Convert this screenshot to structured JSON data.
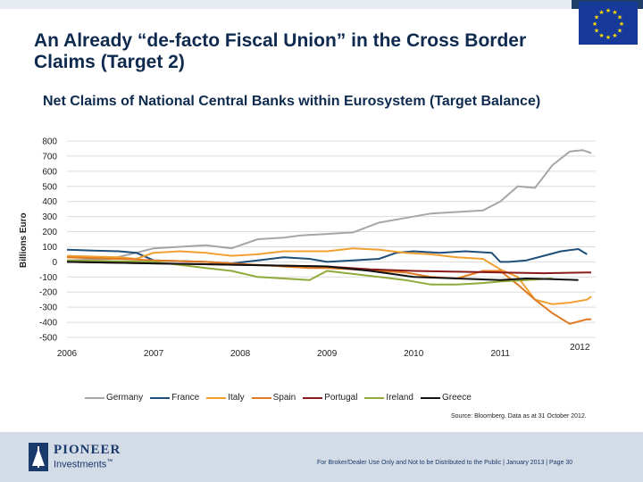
{
  "header": {
    "title": "An Already “de-facto Fiscal Union” in the Cross Border Claims (Target 2)",
    "subtitle": "Net Claims of National Central Banks within Eurosystem (Target Balance)"
  },
  "chart_data": {
    "type": "line",
    "title": "Net Claims of National Central Banks within Eurosystem (Target Balance)",
    "xlabel": "",
    "ylabel": "Billions Euro",
    "ylim": [
      -500,
      800
    ],
    "yticks": [
      800,
      700,
      600,
      500,
      400,
      300,
      200,
      100,
      0,
      -100,
      -200,
      -300,
      -400,
      -500
    ],
    "xticks": [
      "2006",
      "2007",
      "2008",
      "2009",
      "2010",
      "2011",
      "2012"
    ],
    "xlim": [
      2006.0,
      2012.1
    ],
    "grid": true,
    "legend_position": "bottom",
    "series": [
      {
        "name": "Germany",
        "color": "#a6a6a6",
        "x": [
          2006.0,
          2006.5,
          2006.8,
          2007.0,
          2007.3,
          2007.6,
          2007.9,
          2008.2,
          2008.5,
          2008.7,
          2009.0,
          2009.3,
          2009.6,
          2009.9,
          2010.2,
          2010.5,
          2010.8,
          2011.0,
          2011.2,
          2011.4,
          2011.6,
          2011.8,
          2011.95,
          2012.05
        ],
        "y": [
          10,
          20,
          60,
          90,
          100,
          110,
          90,
          150,
          160,
          175,
          185,
          195,
          260,
          290,
          320,
          330,
          340,
          400,
          500,
          490,
          640,
          730,
          740,
          720
        ]
      },
      {
        "name": "France",
        "color": "#1f4e79",
        "x": [
          2006.0,
          2006.3,
          2006.6,
          2006.8,
          2007.0,
          2007.3,
          2007.6,
          2007.9,
          2008.2,
          2008.5,
          2008.8,
          2009.0,
          2009.3,
          2009.6,
          2009.8,
          2010.0,
          2010.3,
          2010.6,
          2010.9,
          2011.0,
          2011.1,
          2011.3,
          2011.5,
          2011.7,
          2011.9,
          2012.0
        ],
        "y": [
          80,
          75,
          70,
          60,
          10,
          5,
          0,
          -10,
          10,
          30,
          20,
          0,
          10,
          20,
          60,
          70,
          60,
          70,
          60,
          0,
          0,
          10,
          40,
          70,
          85,
          50
        ]
      },
      {
        "name": "Italy",
        "color": "#f0a030",
        "x": [
          2006.0,
          2006.3,
          2006.6,
          2006.8,
          2007.0,
          2007.3,
          2007.6,
          2007.9,
          2008.2,
          2008.5,
          2008.8,
          2009.0,
          2009.3,
          2009.6,
          2009.9,
          2010.2,
          2010.5,
          2010.8,
          2011.0,
          2011.2,
          2011.4,
          2011.6,
          2011.8,
          2012.0,
          2012.05
        ],
        "y": [
          40,
          35,
          30,
          20,
          60,
          70,
          60,
          40,
          50,
          70,
          70,
          70,
          90,
          80,
          60,
          50,
          30,
          20,
          -50,
          -100,
          -250,
          -280,
          -270,
          -250,
          -230
        ]
      },
      {
        "name": "Spain",
        "color": "#e07a20",
        "x": [
          2006.0,
          2006.3,
          2006.6,
          2006.8,
          2007.0,
          2007.3,
          2007.6,
          2007.9,
          2008.2,
          2008.5,
          2008.8,
          2009.0,
          2009.3,
          2009.6,
          2009.9,
          2010.2,
          2010.5,
          2010.8,
          2011.0,
          2011.2,
          2011.4,
          2011.6,
          2011.8,
          2012.0,
          2012.05
        ],
        "y": [
          30,
          25,
          20,
          15,
          10,
          5,
          0,
          -10,
          -20,
          -30,
          -40,
          -40,
          -50,
          -60,
          -70,
          -100,
          -110,
          -60,
          -60,
          -150,
          -250,
          -340,
          -410,
          -380,
          -380
        ]
      },
      {
        "name": "Portugal",
        "color": "#8b1a1a",
        "x": [
          2006.0,
          2006.5,
          2007.0,
          2007.5,
          2008.0,
          2008.5,
          2009.0,
          2009.5,
          2010.0,
          2010.5,
          2011.0,
          2011.5,
          2012.0,
          2012.05
        ],
        "y": [
          0,
          -5,
          -10,
          -15,
          -20,
          -25,
          -30,
          -50,
          -60,
          -65,
          -70,
          -75,
          -70,
          -70
        ]
      },
      {
        "name": "Ireland",
        "color": "#8faa3a",
        "x": [
          2006.0,
          2006.5,
          2007.0,
          2007.3,
          2007.6,
          2007.9,
          2008.2,
          2008.5,
          2008.8,
          2009.0,
          2009.3,
          2009.6,
          2009.9,
          2010.2,
          2010.5,
          2010.8,
          2011.0,
          2011.3,
          2011.6
        ],
        "y": [
          10,
          5,
          0,
          -20,
          -40,
          -60,
          -100,
          -110,
          -120,
          -60,
          -80,
          -100,
          -120,
          -150,
          -150,
          -140,
          -130,
          -120,
          -110
        ]
      },
      {
        "name": "Greece",
        "color": "#111111",
        "x": [
          2006.0,
          2006.5,
          2007.0,
          2007.5,
          2008.0,
          2008.5,
          2009.0,
          2009.5,
          2010.0,
          2010.5,
          2011.0,
          2011.3,
          2011.6,
          2011.9
        ],
        "y": [
          0,
          -5,
          -10,
          -15,
          -20,
          -25,
          -30,
          -60,
          -100,
          -110,
          -120,
          -110,
          -115,
          -120
        ]
      }
    ],
    "source": "Source: Bloomberg. Data as at 31 October 2012."
  },
  "footer": {
    "logo_name": "PIONEER",
    "logo_sub": "Investments",
    "logo_tm": "™",
    "disclaimer": "For Broker/Dealer Use Only and Not to be Distributed to the Public | January 2013 | Page 30"
  },
  "colors": {
    "title": "#0e2a4f",
    "footer_bg": "#d3dbe6",
    "eu_blue": "#16399a",
    "eu_star": "#ffdd00"
  }
}
